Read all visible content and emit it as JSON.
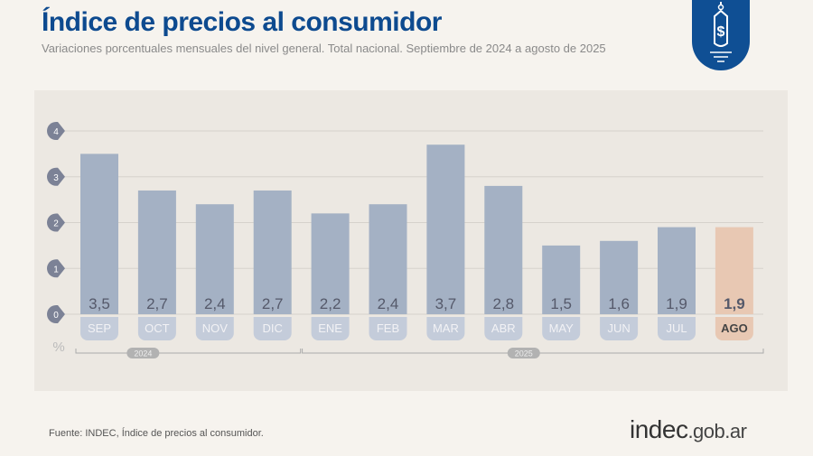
{
  "header": {
    "title": "Índice de precios al consumidor",
    "subtitle": "Variaciones porcentuales mensuales del nivel general. Total nacional. Septiembre de 2024 a agosto de 2025"
  },
  "chart_data": {
    "type": "bar",
    "categories": [
      "SEP",
      "OCT",
      "NOV",
      "DIC",
      "ENE",
      "FEB",
      "MAR",
      "ABR",
      "MAY",
      "JUN",
      "JUL",
      "AGO"
    ],
    "values": [
      3.5,
      2.7,
      2.4,
      2.7,
      2.2,
      2.4,
      3.7,
      2.8,
      1.5,
      1.6,
      1.9,
      1.9
    ],
    "data_labels": [
      "3,5",
      "2,7",
      "2,4",
      "2,7",
      "2,2",
      "2,4",
      "3,7",
      "2,8",
      "1,5",
      "1,6",
      "1,9",
      "1,9"
    ],
    "ylabel": "%",
    "ylim": [
      0,
      4
    ],
    "yticks": [
      0,
      1,
      2,
      3,
      4
    ],
    "grid": true,
    "year_groups": [
      {
        "label": "2024",
        "from": "SEP",
        "to": "DIC"
      },
      {
        "label": "2025",
        "from": "ENE",
        "to": "AGO"
      }
    ],
    "highlight": "AGO",
    "colors": {
      "bar": "#a4b1c4",
      "highlight": "#e8c8b3",
      "label_bg": "#c4ccda",
      "highlight_label_bg": "#e8c8b3"
    }
  },
  "footer": {
    "source": "Fuente: INDEC, Índice de precios al consumidor.",
    "logo_main": "indec",
    "logo_domain": ".gob.ar"
  },
  "icons": {
    "badge": "price-tag-dollar-icon"
  }
}
